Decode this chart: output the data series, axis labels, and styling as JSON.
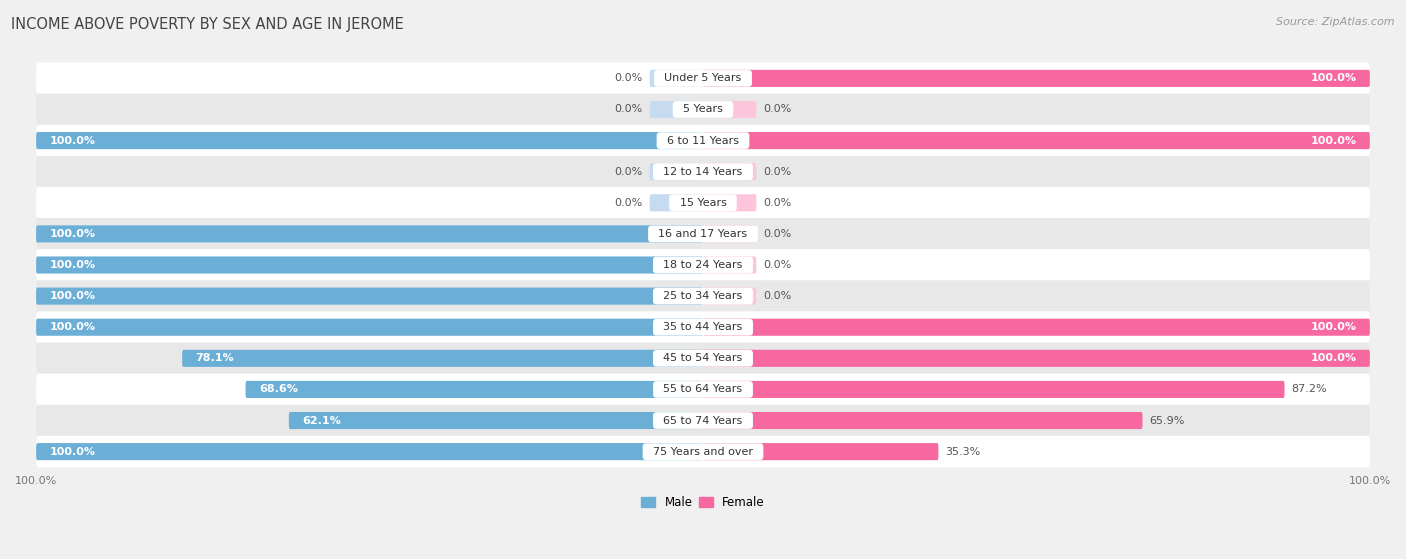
{
  "title": "INCOME ABOVE POVERTY BY SEX AND AGE IN JEROME",
  "source": "Source: ZipAtlas.com",
  "categories": [
    "Under 5 Years",
    "5 Years",
    "6 to 11 Years",
    "12 to 14 Years",
    "15 Years",
    "16 and 17 Years",
    "18 to 24 Years",
    "25 to 34 Years",
    "35 to 44 Years",
    "45 to 54 Years",
    "55 to 64 Years",
    "65 to 74 Years",
    "75 Years and over"
  ],
  "male": [
    0.0,
    0.0,
    100.0,
    0.0,
    0.0,
    100.0,
    100.0,
    100.0,
    100.0,
    78.1,
    68.6,
    62.1,
    100.0
  ],
  "female": [
    100.0,
    0.0,
    100.0,
    0.0,
    0.0,
    0.0,
    0.0,
    0.0,
    100.0,
    100.0,
    87.2,
    65.9,
    35.3
  ],
  "male_color": "#6baed6",
  "female_color": "#f768a1",
  "male_color_light": "#c6dbef",
  "female_color_light": "#fcc5dc",
  "bar_height": 0.55,
  "background_color": "#f0f0f0",
  "row_bg_odd": "#ffffff",
  "row_bg_even": "#e8e8e8",
  "title_fontsize": 10.5,
  "label_fontsize": 8,
  "source_fontsize": 8,
  "axis_label_fontsize": 8,
  "value_label_inside_color": "#ffffff",
  "value_label_outside_color": "#555555"
}
